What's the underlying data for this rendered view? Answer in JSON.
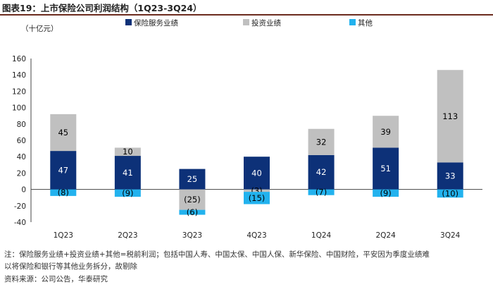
{
  "header": {
    "figure_label": "图表19：",
    "title": "上市保险公司利润结构（1Q23-3Q24）"
  },
  "chart_data": {
    "type": "bar",
    "stacked": true,
    "unit_label": "（十亿元）",
    "categories": [
      "1Q23",
      "2Q23",
      "3Q23",
      "4Q23",
      "1Q24",
      "2Q24",
      "3Q24"
    ],
    "series": [
      {
        "name": "保险服务业绩",
        "color": "#0d3178",
        "label_color": "#ffffff",
        "values": [
          47,
          41,
          25,
          40,
          42,
          51,
          33
        ]
      },
      {
        "name": "投资业绩",
        "color": "#c0c0c0",
        "label_color": "#000000",
        "values": [
          45,
          10,
          -25,
          -3,
          32,
          39,
          113
        ]
      },
      {
        "name": "其他",
        "color": "#22b2ee",
        "label_color": "#000000",
        "values": [
          -8,
          -9,
          -6,
          -15,
          -7,
          -9,
          -10
        ]
      }
    ],
    "data_labels": [
      [
        "47",
        "41",
        "25",
        "40",
        "42",
        "51",
        "33"
      ],
      [
        "45",
        "10",
        "(25)",
        "(3)",
        "32",
        "39",
        "113"
      ],
      [
        "(8)",
        "(9)",
        "(6)",
        "(15)",
        "(7)",
        "(9)",
        "(10)"
      ]
    ],
    "ylim": [
      -40,
      160
    ],
    "yticks": [
      -40,
      -20,
      0,
      20,
      40,
      60,
      80,
      100,
      120,
      140,
      160
    ],
    "legend_position": "top"
  },
  "footnotes": {
    "note_line1": "注：保险服务业绩+投资业绩+其他=税前利润；包括中国人寿、中国太保、中国人保、新华保险、中国财险，平安因为季度业绩难",
    "note_line2": "以将保险和银行等其他业务拆分，故剔除",
    "source": "资料来源：公司公告，华泰研究"
  }
}
